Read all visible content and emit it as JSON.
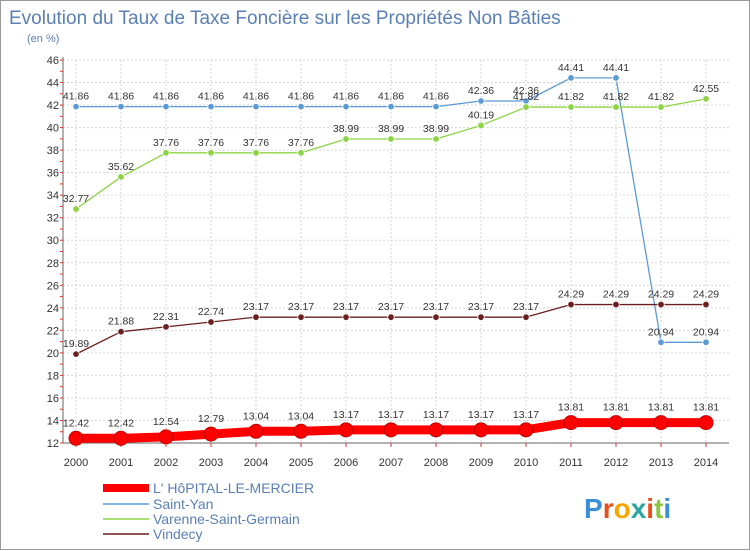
{
  "chart_data": {
    "type": "line",
    "title": "Evolution du Taux de Taxe Foncière sur les Propriétés Non Bâties",
    "subtitle": "(en %)",
    "x": [
      "2000",
      "2001",
      "2002",
      "2003",
      "2004",
      "2005",
      "2006",
      "2007",
      "2008",
      "2009",
      "2010",
      "2011",
      "2012",
      "2013",
      "2014"
    ],
    "ylim": [
      12,
      46
    ],
    "yticks": [
      12,
      14,
      16,
      18,
      20,
      22,
      24,
      26,
      28,
      30,
      32,
      34,
      36,
      38,
      40,
      42,
      44,
      46
    ],
    "grid": true,
    "legend_position": "bottom-left",
    "series": [
      {
        "name": "L' HôPITAL-LE-MERCIER",
        "color": "#ff0000",
        "values": [
          12.42,
          12.42,
          12.54,
          12.79,
          13.04,
          13.04,
          13.17,
          13.17,
          13.17,
          13.17,
          13.17,
          13.81,
          13.81,
          13.81,
          13.81
        ],
        "labels": [
          "12.42",
          "12.42",
          "12.54",
          "12.79",
          "13.04",
          "13.04",
          "13.17",
          "13.17",
          "13.17",
          "13.17",
          "13.17",
          "13.81",
          "13.81",
          "13.81",
          "13.81"
        ]
      },
      {
        "name": "Saint-Yan",
        "color": "#5b9bd5",
        "values": [
          41.86,
          41.86,
          41.86,
          41.86,
          41.86,
          41.86,
          41.86,
          41.86,
          41.86,
          42.36,
          42.36,
          44.41,
          44.41,
          20.94,
          20.94
        ],
        "labels": [
          "41.86",
          "41.86",
          "41.86",
          "41.86",
          "41.86",
          "41.86",
          "41.86",
          "41.86",
          "41.86",
          "42.36",
          "42.36",
          "44.41",
          "44.41",
          "20.94",
          "20.94"
        ]
      },
      {
        "name": "Varenne-Saint-Germain",
        "color": "#8cd445",
        "values": [
          32.77,
          35.62,
          37.76,
          37.76,
          37.76,
          37.76,
          38.99,
          38.99,
          38.99,
          40.19,
          41.82,
          41.82,
          41.82,
          41.82,
          42.55
        ],
        "labels": [
          "32.77",
          "35.62",
          "37.76",
          "37.76",
          "37.76",
          "37.76",
          "38.99",
          "38.99",
          "38.99",
          "40.19",
          "41.82",
          "41.82",
          "41.82",
          "41.82",
          "42.55"
        ]
      },
      {
        "name": "Vindecy",
        "color": "#6b1f1f",
        "values": [
          19.89,
          21.88,
          22.31,
          22.74,
          23.17,
          23.17,
          23.17,
          23.17,
          23.17,
          23.17,
          23.17,
          24.29,
          24.29,
          24.29,
          24.29
        ],
        "labels": [
          "19.89",
          "21.88",
          "22.31",
          "22.74",
          "23.17",
          "23.17",
          "23.17",
          "23.17",
          "23.17",
          "23.17",
          "23.17",
          "24.29",
          "24.29",
          "24.29",
          "24.29"
        ]
      }
    ]
  },
  "brand": {
    "letters": [
      "P",
      "r",
      "o",
      "x",
      "i",
      "t",
      "i"
    ],
    "colors": [
      "#3b8fd6",
      "#e94e1b",
      "#f7a600",
      "#2aa7a0",
      "#e94e1b",
      "#8cc63f",
      "#3b8fd6"
    ]
  }
}
